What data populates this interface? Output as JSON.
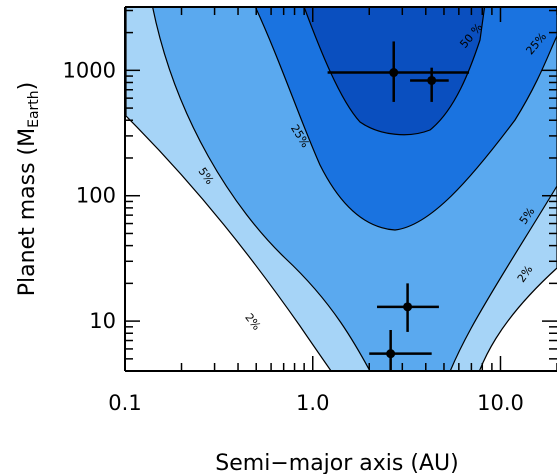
{
  "chart_data": {
    "type": "contour",
    "xlabel": "Semi−major axis (AU)",
    "ylabel_main": "Planet mass (M",
    "ylabel_sub": "Earth",
    "ylabel_end": ")",
    "x_scale": "log",
    "y_scale": "log",
    "xlim": [
      0.1,
      20
    ],
    "ylim": [
      4,
      3200
    ],
    "x_ticks": [
      {
        "value": 0.1,
        "label": "0.1"
      },
      {
        "value": 1,
        "label": "1.0"
      },
      {
        "value": 10,
        "label": "10.0"
      }
    ],
    "y_ticks": [
      {
        "value": 10,
        "label": "10"
      },
      {
        "value": 100,
        "label": "100"
      },
      {
        "value": 1000,
        "label": "1000"
      }
    ],
    "contour_levels": [
      {
        "level": "2%",
        "label": "2%",
        "color": "#a6d4f7"
      },
      {
        "level": "5%",
        "label": "5%",
        "color": "#5aa9ef"
      },
      {
        "level": "25%",
        "label": "25%",
        "color": "#1a73e0"
      },
      {
        "level": "50%",
        "label": "50%",
        "color": "#0a4fbf"
      }
    ],
    "contour_label_texts": [
      "2%",
      "5%",
      "25%",
      "50 %",
      "25%",
      "5%",
      "2%"
    ],
    "planets": [
      {
        "a": 2.7,
        "a_lo": 1.2,
        "a_hi": 6.8,
        "m": 960,
        "m_lo": 560,
        "m_hi": 1700
      },
      {
        "a": 4.3,
        "a_lo": 3.3,
        "a_hi": 5.3,
        "m": 830,
        "m_lo": 560,
        "m_hi": 1050
      },
      {
        "a": 3.2,
        "a_lo": 2.2,
        "a_hi": 4.7,
        "m": 13,
        "m_lo": 8.2,
        "m_hi": 20
      },
      {
        "a": 2.6,
        "a_lo": 2.0,
        "a_hi": 4.3,
        "m": 5.5,
        "m_lo": 2.5,
        "m_hi": 8.5
      }
    ]
  }
}
